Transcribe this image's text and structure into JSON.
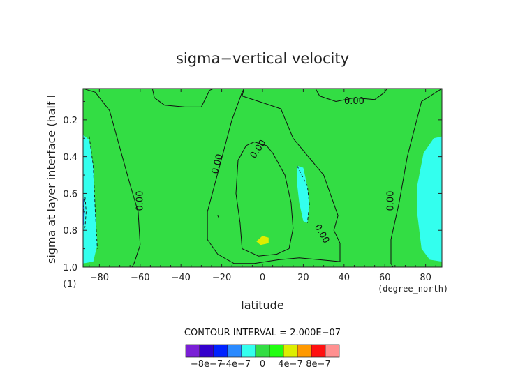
{
  "chart_data": {
    "type": "heatmap",
    "title": "sigma−vertical velocity",
    "xlabel": "latitude",
    "ylabel": "sigma at layer interface (half l",
    "x_unit": "(degree_north)",
    "y_unit": "(1)",
    "xlim": [
      -88,
      88
    ],
    "ylim": [
      1.0,
      0.03
    ],
    "xticks": [
      -80,
      -60,
      -40,
      -20,
      0,
      20,
      40,
      60,
      80
    ],
    "xtick_labels": [
      "−80",
      "−60",
      "−40",
      "−20",
      "0",
      "20",
      "40",
      "60",
      "80"
    ],
    "yticks": [
      0.2,
      0.4,
      0.6,
      0.8,
      1.0
    ],
    "ytick_labels": [
      "0.2",
      "0.4",
      "0.6",
      "0.8",
      "1.0"
    ],
    "contour_interval_text": "CONTOUR INTERVAL = 2.000E−07",
    "contour_interval": 2e-07,
    "background_level": 1e-07,
    "regions": [
      {
        "name": "west-polar-descent",
        "value": -1e-07,
        "color": "#33ffee",
        "polygon": [
          [
            -88,
            0.28
          ],
          [
            -85,
            0.31
          ],
          [
            -83,
            0.45
          ],
          [
            -82,
            0.7
          ],
          [
            -81,
            0.88
          ],
          [
            -83,
            0.97
          ],
          [
            -88,
            0.98
          ]
        ]
      },
      {
        "name": "west-polar-core",
        "value": -3e-07,
        "color": "#2266ff",
        "polygon": [
          [
            -88,
            0.62
          ],
          [
            -87.4,
            0.64
          ],
          [
            -87.2,
            0.7
          ],
          [
            -87.4,
            0.76
          ],
          [
            -88,
            0.78
          ]
        ]
      },
      {
        "name": "east-polar-descent",
        "value": -1e-07,
        "color": "#33ffee",
        "polygon": [
          [
            88,
            0.29
          ],
          [
            84,
            0.3
          ],
          [
            79,
            0.38
          ],
          [
            76,
            0.55
          ],
          [
            76,
            0.72
          ],
          [
            78,
            0.9
          ],
          [
            82,
            0.96
          ],
          [
            88,
            0.97
          ]
        ]
      },
      {
        "name": "midlat-descent-strip",
        "value": -1e-07,
        "color": "#33ffee",
        "polygon": [
          [
            17,
            0.45
          ],
          [
            20,
            0.46
          ],
          [
            22,
            0.56
          ],
          [
            23,
            0.66
          ],
          [
            22,
            0.76
          ],
          [
            20,
            0.75
          ],
          [
            18,
            0.65
          ],
          [
            17,
            0.55
          ]
        ]
      },
      {
        "name": "equatorial-ascent-core",
        "value": 3e-07,
        "color": "#ddee00",
        "polygon": [
          [
            -3,
            0.86
          ],
          [
            0,
            0.83
          ],
          [
            3,
            0.84
          ],
          [
            3,
            0.87
          ],
          [
            -1,
            0.88
          ]
        ]
      }
    ],
    "contours": [
      {
        "level": 0,
        "label": "0.00",
        "points": [
          [
            -88,
            0.03
          ],
          [
            -82,
            0.05
          ],
          [
            -75,
            0.15
          ],
          [
            -70,
            0.35
          ],
          [
            -65,
            0.55
          ],
          [
            -61,
            0.7
          ],
          [
            -60,
            0.88
          ],
          [
            -63,
            0.98
          ],
          [
            -64,
            1.0
          ]
        ]
      },
      {
        "level": 0,
        "label": "0.00",
        "points": [
          [
            88,
            0.03
          ],
          [
            78,
            0.1
          ],
          [
            71,
            0.4
          ],
          [
            67,
            0.65
          ],
          [
            63,
            0.85
          ],
          [
            63,
            0.98
          ],
          [
            64,
            1.0
          ]
        ]
      },
      {
        "level": 0,
        "label": "0.00",
        "points": [
          [
            -54,
            0.03
          ],
          [
            -53,
            0.08
          ],
          [
            -48,
            0.12
          ],
          [
            -38,
            0.13
          ],
          [
            -30,
            0.13
          ],
          [
            -26,
            0.04
          ],
          [
            -24,
            0.03
          ]
        ]
      },
      {
        "level": 0,
        "label": "0.00",
        "points": [
          [
            -9,
            0.03
          ],
          [
            -10,
            0.05
          ],
          [
            -15,
            0.2
          ],
          [
            -21,
            0.45
          ],
          [
            -27,
            0.7
          ],
          [
            -27,
            0.85
          ],
          [
            -22,
            0.93
          ],
          [
            -14,
            0.98
          ],
          [
            -4,
            0.98
          ],
          [
            8,
            0.96
          ],
          [
            18,
            0.95
          ],
          [
            28,
            0.96
          ],
          [
            38,
            0.97
          ],
          [
            38,
            0.87
          ],
          [
            35,
            0.8
          ],
          [
            37,
            0.72
          ],
          [
            30,
            0.5
          ],
          [
            15,
            0.3
          ],
          [
            9,
            0.14
          ],
          [
            1,
            0.11
          ],
          [
            -10,
            0.07
          ],
          [
            -9,
            0.03
          ]
        ]
      },
      {
        "level": 0,
        "label": "0.00",
        "points": [
          [
            26,
            0.03
          ],
          [
            28,
            0.07
          ],
          [
            36,
            0.1
          ],
          [
            45,
            0.08
          ],
          [
            55,
            0.09
          ],
          [
            60,
            0.05
          ],
          [
            61,
            0.03
          ]
        ]
      },
      {
        "level": 2e-07,
        "label": "0.00",
        "points": [
          [
            -12,
            0.42
          ],
          [
            -8,
            0.34
          ],
          [
            -4,
            0.32
          ],
          [
            2,
            0.34
          ],
          [
            5,
            0.38
          ],
          [
            11,
            0.5
          ],
          [
            14,
            0.65
          ],
          [
            15,
            0.79
          ],
          [
            13,
            0.9
          ],
          [
            7,
            0.93
          ],
          [
            -2,
            0.94
          ],
          [
            -10,
            0.9
          ],
          [
            -11,
            0.76
          ],
          [
            -13,
            0.6
          ],
          [
            -12,
            0.42
          ]
        ]
      }
    ],
    "dashed_contours": [
      {
        "level": -2e-07,
        "points": [
          [
            -88,
            0.7
          ],
          [
            -87,
            0.62
          ],
          [
            -86.5,
            0.7
          ],
          [
            -87,
            0.78
          ],
          [
            -88,
            0.8
          ]
        ]
      },
      {
        "level": 0,
        "points": [
          [
            -85,
            0.29
          ],
          [
            -83,
            0.45
          ],
          [
            -82,
            0.7
          ],
          [
            -81,
            0.9
          ]
        ]
      },
      {
        "level": 0,
        "points": [
          [
            17,
            0.45
          ],
          [
            22,
            0.56
          ],
          [
            23,
            0.66
          ],
          [
            22,
            0.76
          ]
        ]
      },
      {
        "level": 0,
        "points": [
          [
            -22,
            0.72
          ],
          [
            -21,
            0.74
          ]
        ]
      }
    ],
    "contour_labels": [
      {
        "text": "0.00",
        "lat": -60,
        "sigma": 0.64,
        "rotate": -90
      },
      {
        "text": "0.00",
        "lat": 63,
        "sigma": 0.64,
        "rotate": -90
      },
      {
        "text": "0.00",
        "lat": -22,
        "sigma": 0.44,
        "rotate": -75
      },
      {
        "text": "0.00",
        "lat": -2,
        "sigma": 0.36,
        "rotate": -55
      },
      {
        "text": "0.00",
        "lat": 45,
        "sigma": 0.1,
        "rotate": 0
      },
      {
        "text": "0.00",
        "lat": 29,
        "sigma": 0.82,
        "rotate": 60
      }
    ],
    "colorbar": {
      "colors": [
        "#7a1fd6",
        "#3300cc",
        "#0022ff",
        "#2a8aff",
        "#33ffee",
        "#33dd44",
        "#22ff11",
        "#ddee00",
        "#ff9900",
        "#ff1010",
        "#ff9090"
      ],
      "tick_labels": [
        "−8e−7",
        "−4e−7",
        "0",
        "4e−7",
        "8e−7"
      ],
      "tick_values": [
        -8e-07,
        -4e-07,
        0,
        4e-07,
        8e-07
      ]
    }
  }
}
